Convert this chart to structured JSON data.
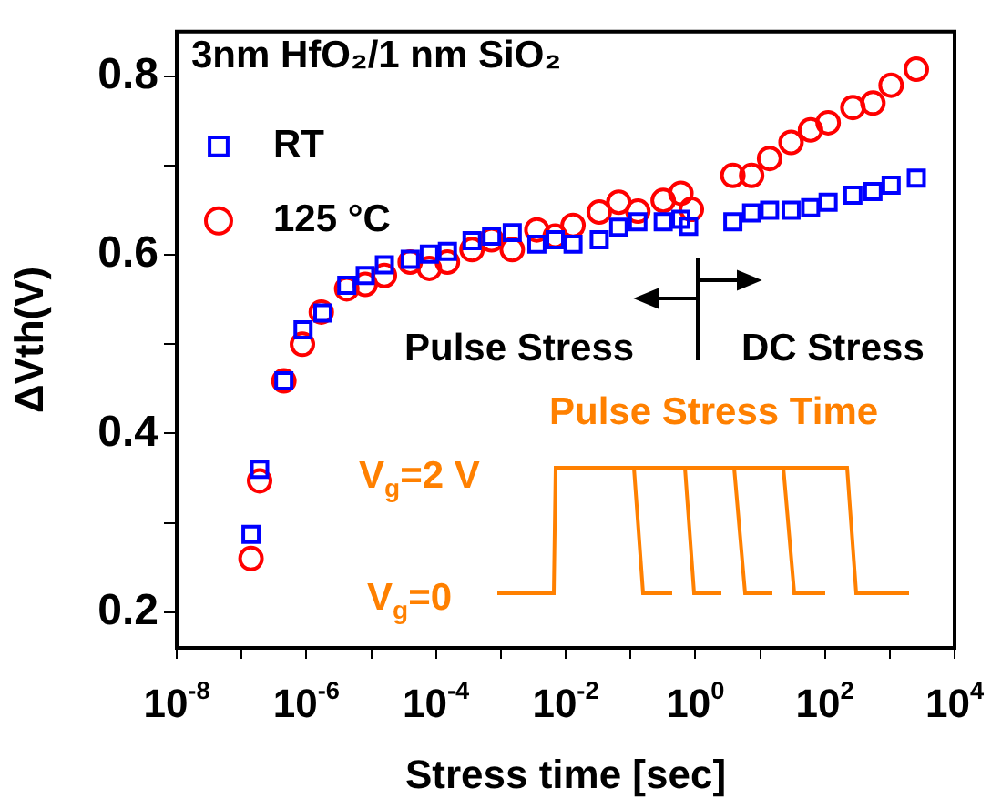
{
  "chart_data": {
    "type": "scatter",
    "title": "3nm HfO₂/1 nm SiO₂",
    "xlabel": "Stress time [sec]",
    "ylabel": "ΔVth(V)",
    "log": "x",
    "xlim": [
      1e-08,
      10000
    ],
    "ylim": [
      0.16,
      0.85
    ],
    "xticks": [
      {
        "value": 1e-08,
        "label": "10$^{-8}$"
      },
      {
        "value": 1e-07,
        "label": null
      },
      {
        "value": 1e-06,
        "label": "10$^{-6}$"
      },
      {
        "value": 1e-05,
        "label": null
      },
      {
        "value": 0.0001,
        "label": "10$^{-4}$"
      },
      {
        "value": 0.001,
        "label": null
      },
      {
        "value": 0.01,
        "label": "10$^{-2}$"
      },
      {
        "value": 0.1,
        "label": null
      },
      {
        "value": 1,
        "label": "10$^{0}$"
      },
      {
        "value": 10,
        "label": null
      },
      {
        "value": 100,
        "label": "10$^{2}$"
      },
      {
        "value": 1000,
        "label": null
      },
      {
        "value": 10000,
        "label": "10$^{4}$"
      }
    ],
    "yticks": [
      0.2,
      {
        "value": 0.3,
        "label": null
      },
      0.4,
      {
        "value": 0.5,
        "label": null
      },
      0.6,
      {
        "value": 0.7,
        "label": null
      },
      0.8
    ],
    "grid": false,
    "legend": "top left",
    "series": [
      {
        "name": "RT",
        "color": "#0000ff",
        "marker": "square",
        "x": [
          1.4e-07,
          1.9e-07,
          4.5e-07,
          8.9e-07,
          1.8e-06,
          4.2e-06,
          8.1e-06,
          1.6e-05,
          4e-05,
          7.9e-05,
          0.00015,
          0.00036,
          0.00072,
          0.0015,
          0.0036,
          0.0069,
          0.013,
          0.033,
          0.066,
          0.13,
          0.32,
          0.6,
          0.79,
          3.8,
          7.4,
          14,
          30,
          60,
          112,
          270,
          550,
          1050,
          2570
        ],
        "values": [
          0.287,
          0.36,
          0.459,
          0.516,
          0.535,
          0.566,
          0.577,
          0.589,
          0.595,
          0.601,
          0.604,
          0.616,
          0.621,
          0.625,
          0.612,
          0.617,
          0.612,
          0.617,
          0.631,
          0.637,
          0.637,
          0.64,
          0.632,
          0.637,
          0.647,
          0.65,
          0.65,
          0.653,
          0.659,
          0.667,
          0.671,
          0.678,
          0.686
        ]
      },
      {
        "name": "125 °C",
        "color": "#ff0000",
        "marker": "circle",
        "x": [
          1.4e-07,
          1.9e-07,
          4.5e-07,
          8.7e-07,
          1.7e-06,
          4.2e-06,
          8.1e-06,
          1.6e-05,
          4e-05,
          7.9e-05,
          0.00015,
          0.00036,
          0.00072,
          0.0015,
          0.0036,
          0.0069,
          0.013,
          0.033,
          0.066,
          0.13,
          0.32,
          0.6,
          0.87,
          3.8,
          7.4,
          14,
          30,
          60,
          112,
          270,
          550,
          1050,
          2570
        ],
        "values": [
          0.26,
          0.347,
          0.459,
          0.5,
          0.536,
          0.562,
          0.567,
          0.577,
          0.592,
          0.585,
          0.592,
          0.606,
          0.617,
          0.606,
          0.628,
          0.621,
          0.633,
          0.648,
          0.659,
          0.649,
          0.661,
          0.669,
          0.651,
          0.689,
          0.689,
          0.708,
          0.726,
          0.74,
          0.748,
          0.765,
          0.77,
          0.79,
          0.808
        ]
      }
    ],
    "annotations": [
      "Pulse Stress",
      "DC Stress",
      "Pulse Stress Time",
      "V$_{g}$=2 V",
      "V$_{g}$=0"
    ]
  }
}
